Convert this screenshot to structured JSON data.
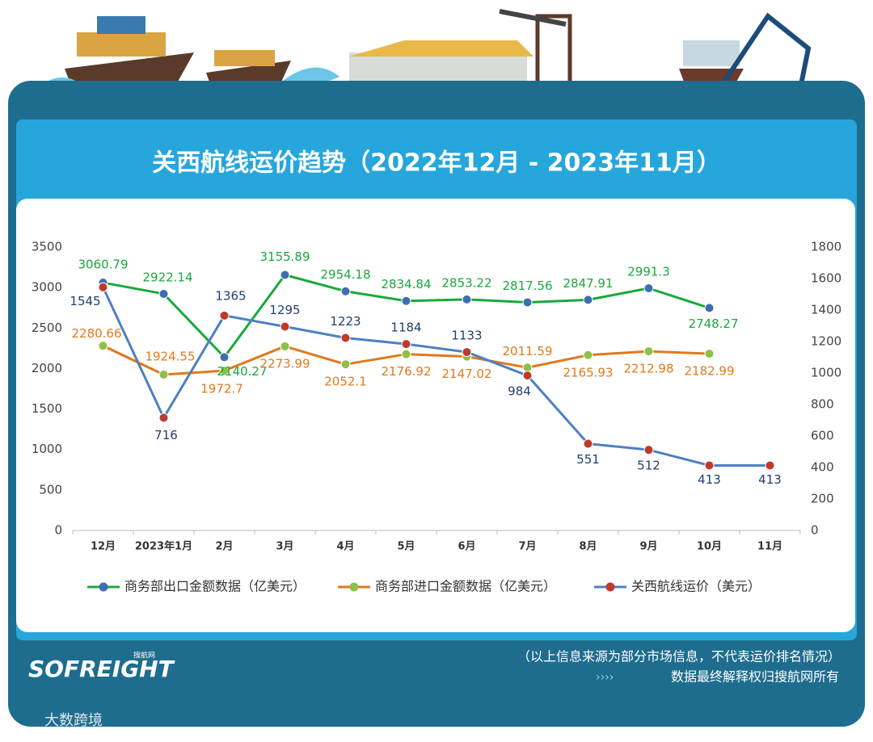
{
  "chart_data": {
    "type": "line",
    "title": "关西航线运价趋势（2022年12月 - 2023年11月）",
    "categories": [
      "12月",
      "2023年1月",
      "2月",
      "3月",
      "4月",
      "5月",
      "6月",
      "7月",
      "8月",
      "9月",
      "10月",
      "11月"
    ],
    "series": [
      {
        "name": "商务部出口金额数据（亿美元）",
        "color": "#1aa83c",
        "marker_color": "#3d6fae",
        "values": [
          3060.79,
          2922.14,
          2140.27,
          3155.89,
          2954.18,
          2834.84,
          2853.22,
          2817.56,
          2847.91,
          2991.3,
          2748.27,
          null
        ]
      },
      {
        "name": "商务部进口金额数据（亿美元）",
        "color": "#e0791c",
        "marker_color": "#8dbf4a",
        "values": [
          2280.66,
          1924.55,
          1972.7,
          2273.99,
          2052.1,
          2176.92,
          2147.02,
          2011.59,
          2165.93,
          2212.98,
          2182.99,
          null
        ]
      },
      {
        "name": "关西航线运价（美元）",
        "color": "#4c80c2",
        "marker_color": "#c0392b",
        "axis": "y2",
        "values": [
          1545,
          716,
          1365,
          1295,
          1223,
          1184,
          1133,
          984,
          551,
          512,
          413,
          413
        ]
      }
    ],
    "ylim": [
      0,
      3500
    ],
    "yticks": [
      0,
      500,
      1000,
      1500,
      2000,
      2500,
      3000,
      3500
    ],
    "y2lim": [
      0,
      1800
    ],
    "y2ticks": [
      0,
      200,
      400,
      600,
      800,
      1000,
      1200,
      1400,
      1600,
      1800
    ],
    "legend": "bottom"
  },
  "footer": {
    "logo": "SOFREIGHT",
    "logo_sub": "搜航网",
    "note": "（以上信息来源为部分市场信息，不代表运价排名情况）",
    "rights": "数据最终解释权归搜航网所有",
    "watermark": "大数跨境"
  }
}
